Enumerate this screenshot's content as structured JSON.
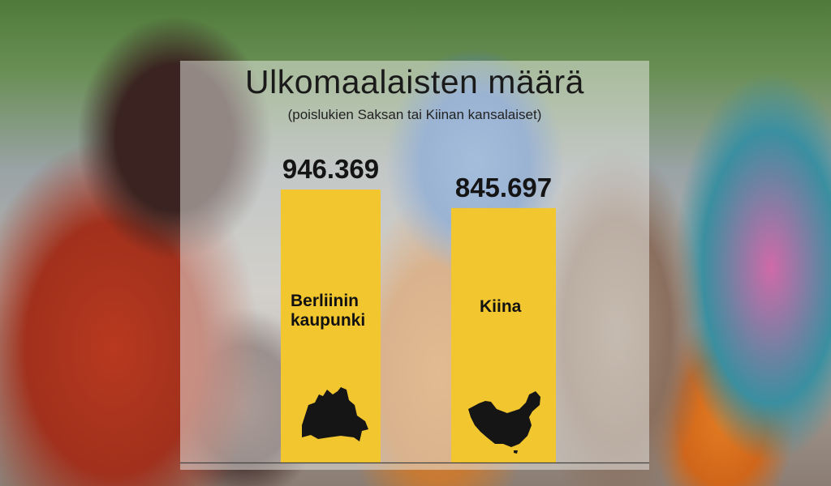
{
  "chart_data": {
    "type": "bar",
    "title": "Ulkomaalaisten määrä",
    "subtitle": "(poislukien Saksan tai Kiinan kansalaiset)",
    "categories": [
      "Berliinin kaupunki",
      "Kiina"
    ],
    "category_lines": [
      [
        "Berliinin",
        "kaupunki"
      ],
      [
        "Kiina"
      ]
    ],
    "values": [
      946369,
      845697
    ],
    "value_labels": [
      "946.369",
      "845.697"
    ],
    "icons": [
      "berlin-map-icon",
      "china-map-icon"
    ],
    "bar_color": "#f2c62f",
    "xlabel": "",
    "ylabel": "",
    "grid": false
  }
}
